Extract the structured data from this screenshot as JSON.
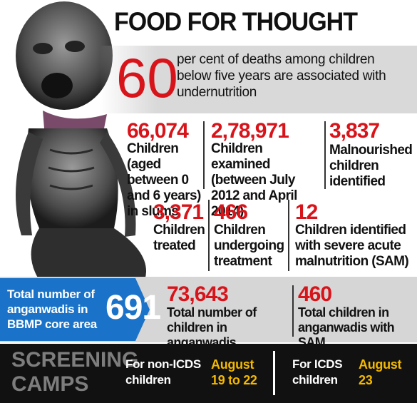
{
  "title": "FOOD FOR THOUGHT",
  "headline_stat": {
    "value": "60",
    "text": "per cent of deaths among children below five years are associated with undernutrition"
  },
  "stats_row1": [
    {
      "value": "66,074",
      "label": "Children (aged between 0 and 6 years) in slums"
    },
    {
      "value": "2,78,971",
      "label": "Children examined (between July 2012 and April 2014)"
    },
    {
      "value": "3,837",
      "label": "Malnourished children identified"
    }
  ],
  "stats_row2": [
    {
      "value": "3,371",
      "label": "Children treated"
    },
    {
      "value": "466",
      "label": "Children undergoing treatment"
    },
    {
      "value": "12",
      "label": "Children identified with severe acute malnutrition (SAM)"
    }
  ],
  "anganwadi": {
    "total_label": "Total number of anganwadis in BBMP core area",
    "total_value": "691",
    "children_value": "73,643",
    "children_label": "Total number of children in anganwadis",
    "sam_value": "460",
    "sam_label": "Total children in anganwadis with SAM"
  },
  "screening": {
    "heading": "SCREENING CAMPS",
    "non_icds_label": "For non-ICDS children",
    "non_icds_date": "August 19 to 22",
    "icds_label": "For ICDS children",
    "icds_date": "August 23"
  },
  "colors": {
    "accent_red": "#d8141b",
    "blue": "#1a73c8",
    "date_yellow": "#f3b800",
    "banner_grey": "#d9d9d9",
    "bottom_bar": "#111111"
  }
}
